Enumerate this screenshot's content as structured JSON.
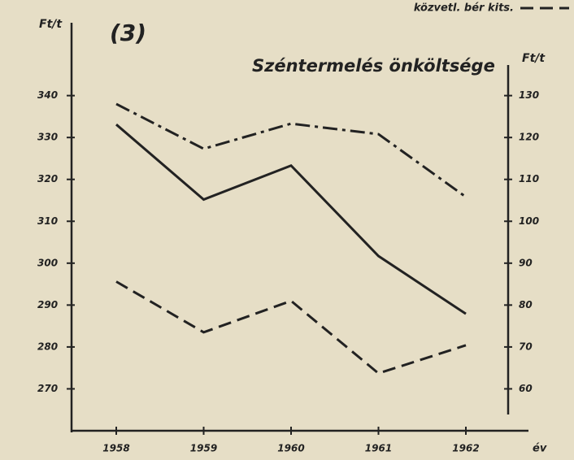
{
  "chart_data": {
    "type": "line",
    "title": "Széntermelés önköltsége",
    "panel_label": "(3)",
    "y_label": "Ft/t",
    "y2_label": "Ft/t",
    "x_label": "év",
    "categories": [
      "1958",
      "1959",
      "1960",
      "1961",
      "1962"
    ],
    "series": [
      {
        "color": "#222222",
        "style": "solid",
        "values": [
          333.1,
          315.2,
          323.3,
          301.7,
          287.9
        ]
      },
      {
        "color": "#222222",
        "style": "dashdot",
        "values": [
          338,
          327.3,
          333.3,
          330.8,
          315.8
        ]
      },
      {
        "name": "közvetl. bér kits.",
        "color": "#222222",
        "style": "dashed",
        "axis": "y2",
        "values": [
          85.6,
          73.5,
          81,
          63.7,
          70.4
        ]
      }
    ],
    "ylim": [
      260,
      357
    ],
    "yticks": [
      270,
      280,
      290,
      300,
      310,
      320,
      330,
      340
    ],
    "y2lim": [
      50,
      147
    ],
    "y2ticks": [
      60,
      70,
      80,
      90,
      100,
      110,
      120,
      130
    ]
  }
}
